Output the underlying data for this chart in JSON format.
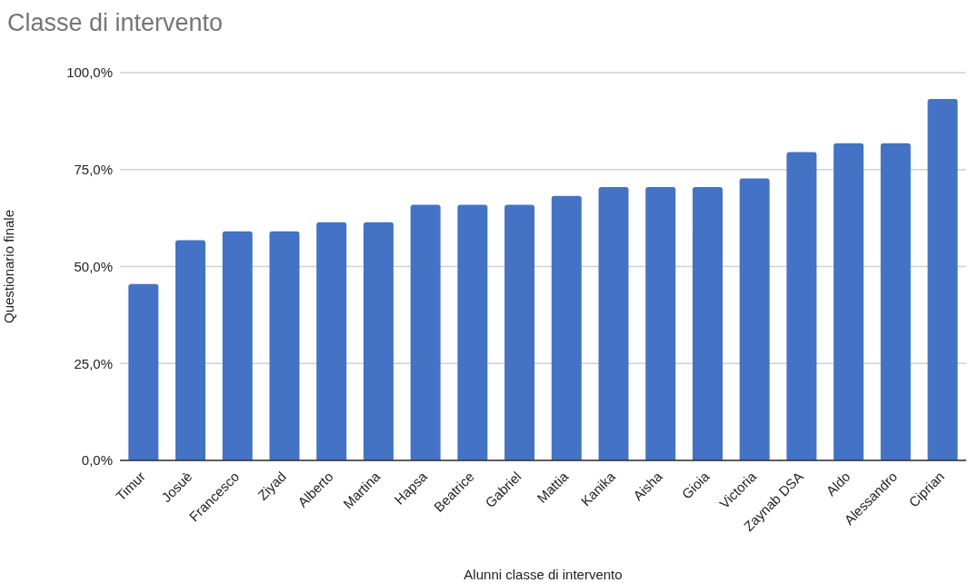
{
  "chart_data": {
    "type": "bar",
    "title": "Classe di intervento",
    "xlabel": "Alunni classe di intervento",
    "ylabel": "Questionario finale",
    "categories": [
      "Timur",
      "Josuè",
      "Francesco",
      "Ziyad",
      "Alberto",
      "Martina",
      "Hapsa",
      "Beatrice",
      "Gabriel",
      "Mattia",
      "Kanika",
      "Aisha",
      "Gioia",
      "Victoria",
      "Zaynab DSA",
      "Aldo",
      "Alessandro",
      "Ciprian"
    ],
    "values": [
      45.5,
      56.8,
      59.1,
      59.1,
      61.4,
      61.4,
      65.9,
      65.9,
      65.9,
      68.2,
      70.5,
      70.5,
      70.5,
      72.7,
      79.5,
      81.8,
      81.8,
      93.2
    ],
    "color": "#4472c4",
    "ylim": [
      0,
      100
    ],
    "yticks": [
      {
        "value": 0,
        "label": "0,0%"
      },
      {
        "value": 25,
        "label": "25,0%"
      },
      {
        "value": 50,
        "label": "50,0%"
      },
      {
        "value": 75,
        "label": "75,0%"
      },
      {
        "value": 100,
        "label": "100,0%"
      }
    ],
    "grid": "y"
  }
}
